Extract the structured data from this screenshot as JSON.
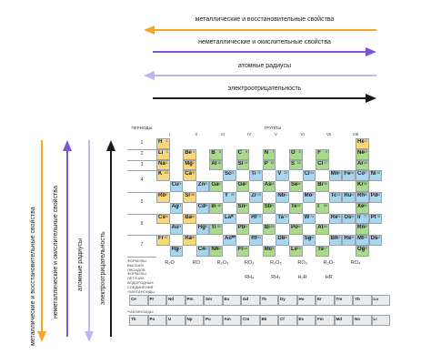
{
  "arrows": {
    "metallic": "металлические и восстановительные свойства",
    "nonmetallic": "неметаллические и окислительные свойства",
    "radius": "атомные радиусы",
    "electroneg": "электроотрицательность"
  },
  "colors": {
    "orange": "#f5a623",
    "purple": "#7b56d8",
    "lavender": "#c3b3f0",
    "black": "#1a1a1a",
    "s": "#f6d77a",
    "p": "#a9d98b",
    "d": "#a9d6ef",
    "f": "#e5e7ea"
  },
  "table": {
    "periods_header": "ПЕРИОДЫ",
    "groups_header": "ГРУППЫ",
    "group_labels": [
      "I",
      "II",
      "III",
      "IV",
      "V",
      "VI",
      "VII",
      "VIII"
    ],
    "sub_labels": [
      "А",
      "Б",
      "А",
      "Б",
      "А",
      "Б",
      "А",
      "Б",
      "А",
      "Б",
      "А",
      "Б",
      "А",
      "Б",
      "Б"
    ],
    "period_numbers": [
      "1",
      "2",
      "3",
      "4",
      "5",
      "6",
      "7"
    ],
    "oxides_label": "ФОРМУЛЫ ВЫСШИХ ОКСИДОВ",
    "hydrides_label": "ФОРМУЛЫ ЛЕТУЧИХ ВОДОРОДНЫХ СОЕДИНЕНИЙ",
    "oxides": [
      "R₂O",
      "RO",
      "R₂O₃",
      "RO₂",
      "R₂O₅",
      "RO₃",
      "R₂O₇",
      "RO₄"
    ],
    "hydrides": [
      "RH₄",
      "RH₃",
      "H₂R",
      "HR"
    ],
    "lanthanides_label": "*ЛАНТАНОИДЫ",
    "actinides_label": "**АКТИНОИДЫ",
    "lanthanides": [
      "Ce",
      "Pr",
      "Nd",
      "Pm",
      "Sm",
      "Eu",
      "Gd",
      "Tb",
      "Dy",
      "Ho",
      "Er",
      "Tm",
      "Yb",
      "Lu"
    ],
    "actinides": [
      "Th",
      "Pa",
      "U",
      "Np",
      "Pu",
      "Am",
      "Cm",
      "Bk",
      "Cf",
      "Es",
      "Fm",
      "Md",
      "No",
      "Lr"
    ],
    "elements": [
      {
        "s": "H",
        "n": "1",
        "r": 0,
        "c": 0,
        "t": "s"
      },
      {
        "s": "He",
        "n": "2",
        "r": 0,
        "c": 15,
        "t": "s"
      },
      {
        "s": "Li",
        "n": "3",
        "r": 1,
        "c": 0,
        "t": "s"
      },
      {
        "s": "Be",
        "n": "4",
        "r": 1,
        "c": 2,
        "t": "s"
      },
      {
        "s": "B",
        "n": "5",
        "r": 1,
        "c": 4,
        "t": "p"
      },
      {
        "s": "C",
        "n": "6",
        "r": 1,
        "c": 6,
        "t": "p"
      },
      {
        "s": "N",
        "n": "7",
        "r": 1,
        "c": 8,
        "t": "p"
      },
      {
        "s": "O",
        "n": "8",
        "r": 1,
        "c": 10,
        "t": "p"
      },
      {
        "s": "F",
        "n": "9",
        "r": 1,
        "c": 12,
        "t": "p"
      },
      {
        "s": "Ne",
        "n": "10",
        "r": 1,
        "c": 15,
        "t": "p"
      },
      {
        "s": "Na",
        "n": "11",
        "r": 2,
        "c": 0,
        "t": "s"
      },
      {
        "s": "Mg",
        "n": "12",
        "r": 2,
        "c": 2,
        "t": "s"
      },
      {
        "s": "Al",
        "n": "13",
        "r": 2,
        "c": 4,
        "t": "p"
      },
      {
        "s": "Si",
        "n": "14",
        "r": 2,
        "c": 6,
        "t": "p"
      },
      {
        "s": "P",
        "n": "15",
        "r": 2,
        "c": 8,
        "t": "p"
      },
      {
        "s": "S",
        "n": "16",
        "r": 2,
        "c": 10,
        "t": "p"
      },
      {
        "s": "Cl",
        "n": "17",
        "r": 2,
        "c": 12,
        "t": "p"
      },
      {
        "s": "Ar",
        "n": "18",
        "r": 2,
        "c": 15,
        "t": "p"
      },
      {
        "s": "K",
        "n": "19",
        "r": 3,
        "c": 0,
        "t": "s"
      },
      {
        "s": "Ca",
        "n": "20",
        "r": 3,
        "c": 2,
        "t": "s"
      },
      {
        "s": "Sc",
        "n": "21",
        "r": 3,
        "c": 5,
        "t": "d"
      },
      {
        "s": "Ti",
        "n": "22",
        "r": 3,
        "c": 7,
        "t": "d"
      },
      {
        "s": "V",
        "n": "23",
        "r": 3,
        "c": 9,
        "t": "d"
      },
      {
        "s": "Cr",
        "n": "24",
        "r": 3,
        "c": 11,
        "t": "d"
      },
      {
        "s": "Mn",
        "n": "25",
        "r": 3,
        "c": 13,
        "t": "d"
      },
      {
        "s": "Fe",
        "n": "26",
        "r": 3,
        "c": 14,
        "t": "d"
      },
      {
        "s": "Co",
        "n": "27",
        "r": 3,
        "c": 15,
        "t": "d"
      },
      {
        "s": "Ni",
        "n": "28",
        "r": 3,
        "c": 16,
        "t": "d"
      },
      {
        "s": "Cu",
        "n": "29",
        "r": 4,
        "c": 1,
        "t": "d"
      },
      {
        "s": "Zn",
        "n": "30",
        "r": 4,
        "c": 3,
        "t": "d"
      },
      {
        "s": "Ga",
        "n": "31",
        "r": 4,
        "c": 4,
        "t": "p"
      },
      {
        "s": "Ge",
        "n": "32",
        "r": 4,
        "c": 6,
        "t": "p"
      },
      {
        "s": "As",
        "n": "33",
        "r": 4,
        "c": 8,
        "t": "p"
      },
      {
        "s": "Se",
        "n": "34",
        "r": 4,
        "c": 10,
        "t": "p"
      },
      {
        "s": "Br",
        "n": "35",
        "r": 4,
        "c": 12,
        "t": "p"
      },
      {
        "s": "Kr",
        "n": "36",
        "r": 4,
        "c": 15,
        "t": "p"
      },
      {
        "s": "Rb",
        "n": "37",
        "r": 5,
        "c": 0,
        "t": "s"
      },
      {
        "s": "Sr",
        "n": "38",
        "r": 5,
        "c": 2,
        "t": "s"
      },
      {
        "s": "Y",
        "n": "39",
        "r": 5,
        "c": 5,
        "t": "d"
      },
      {
        "s": "Zr",
        "n": "40",
        "r": 5,
        "c": 7,
        "t": "d"
      },
      {
        "s": "Nb",
        "n": "41",
        "r": 5,
        "c": 9,
        "t": "d"
      },
      {
        "s": "Mo",
        "n": "42",
        "r": 5,
        "c": 11,
        "t": "d"
      },
      {
        "s": "Tc",
        "n": "43",
        "r": 5,
        "c": 13,
        "t": "d"
      },
      {
        "s": "Ru",
        "n": "44",
        "r": 5,
        "c": 14,
        "t": "d"
      },
      {
        "s": "Rh",
        "n": "45",
        "r": 5,
        "c": 15,
        "t": "d"
      },
      {
        "s": "Pd",
        "n": "46",
        "r": 5,
        "c": 16,
        "t": "d"
      },
      {
        "s": "Ag",
        "n": "47",
        "r": 6,
        "c": 1,
        "t": "d"
      },
      {
        "s": "Cd",
        "n": "48",
        "r": 6,
        "c": 3,
        "t": "d"
      },
      {
        "s": "In",
        "n": "49",
        "r": 6,
        "c": 4,
        "t": "p"
      },
      {
        "s": "Sn",
        "n": "50",
        "r": 6,
        "c": 6,
        "t": "p"
      },
      {
        "s": "Sb",
        "n": "51",
        "r": 6,
        "c": 8,
        "t": "p"
      },
      {
        "s": "Te",
        "n": "52",
        "r": 6,
        "c": 10,
        "t": "p"
      },
      {
        "s": "I",
        "n": "53",
        "r": 6,
        "c": 12,
        "t": "p"
      },
      {
        "s": "Xe",
        "n": "54",
        "r": 6,
        "c": 15,
        "t": "p"
      },
      {
        "s": "Cs",
        "n": "55",
        "r": 7,
        "c": 0,
        "t": "s"
      },
      {
        "s": "Ba",
        "n": "56",
        "r": 7,
        "c": 2,
        "t": "s"
      },
      {
        "s": "La*",
        "n": "57",
        "r": 7,
        "c": 5,
        "t": "d"
      },
      {
        "s": "Hf",
        "n": "72",
        "r": 7,
        "c": 7,
        "t": "d"
      },
      {
        "s": "Ta",
        "n": "73",
        "r": 7,
        "c": 9,
        "t": "d"
      },
      {
        "s": "W",
        "n": "74",
        "r": 7,
        "c": 11,
        "t": "d"
      },
      {
        "s": "Re",
        "n": "75",
        "r": 7,
        "c": 13,
        "t": "d"
      },
      {
        "s": "Os",
        "n": "76",
        "r": 7,
        "c": 14,
        "t": "d"
      },
      {
        "s": "Ir",
        "n": "77",
        "r": 7,
        "c": 15,
        "t": "d"
      },
      {
        "s": "Pt",
        "n": "78",
        "r": 7,
        "c": 16,
        "t": "d"
      },
      {
        "s": "Au",
        "n": "79",
        "r": 8,
        "c": 1,
        "t": "d"
      },
      {
        "s": "Hg",
        "n": "80",
        "r": 8,
        "c": 3,
        "t": "d"
      },
      {
        "s": "Tl",
        "n": "81",
        "r": 8,
        "c": 4,
        "t": "p"
      },
      {
        "s": "Pb",
        "n": "82",
        "r": 8,
        "c": 6,
        "t": "p"
      },
      {
        "s": "Bi",
        "n": "83",
        "r": 8,
        "c": 8,
        "t": "p"
      },
      {
        "s": "Po",
        "n": "84",
        "r": 8,
        "c": 10,
        "t": "p"
      },
      {
        "s": "At",
        "n": "85",
        "r": 8,
        "c": 12,
        "t": "p"
      },
      {
        "s": "Rn",
        "n": "86",
        "r": 8,
        "c": 15,
        "t": "p"
      },
      {
        "s": "Fr",
        "n": "87",
        "r": 9,
        "c": 0,
        "t": "s"
      },
      {
        "s": "Ra",
        "n": "88",
        "r": 9,
        "c": 2,
        "t": "s"
      },
      {
        "s": "Ac**",
        "n": "89",
        "r": 9,
        "c": 5,
        "t": "d"
      },
      {
        "s": "Rf",
        "n": "104",
        "r": 9,
        "c": 7,
        "t": "d"
      },
      {
        "s": "Db",
        "n": "105",
        "r": 9,
        "c": 9,
        "t": "d"
      },
      {
        "s": "Sg",
        "n": "106",
        "r": 9,
        "c": 11,
        "t": "d"
      },
      {
        "s": "Bh",
        "n": "107",
        "r": 9,
        "c": 13,
        "t": "d"
      },
      {
        "s": "Hs",
        "n": "108",
        "r": 9,
        "c": 14,
        "t": "d"
      },
      {
        "s": "Mt",
        "n": "109",
        "r": 9,
        "c": 15,
        "t": "d"
      },
      {
        "s": "Ds",
        "n": "110",
        "r": 9,
        "c": 16,
        "t": "d"
      },
      {
        "s": "Rg",
        "n": "111",
        "r": 10,
        "c": 1,
        "t": "d"
      },
      {
        "s": "Cn",
        "n": "112",
        "r": 10,
        "c": 3,
        "t": "d"
      },
      {
        "s": "Nh",
        "n": "113",
        "r": 10,
        "c": 4,
        "t": "p"
      },
      {
        "s": "Fl",
        "n": "114",
        "r": 10,
        "c": 6,
        "t": "p"
      },
      {
        "s": "Mc",
        "n": "115",
        "r": 10,
        "c": 8,
        "t": "p"
      },
      {
        "s": "Lv",
        "n": "116",
        "r": 10,
        "c": 10,
        "t": "p"
      },
      {
        "s": "Ts",
        "n": "117",
        "r": 10,
        "c": 12,
        "t": "p"
      },
      {
        "s": "Og",
        "n": "118",
        "r": 10,
        "c": 15,
        "t": "p"
      }
    ]
  }
}
